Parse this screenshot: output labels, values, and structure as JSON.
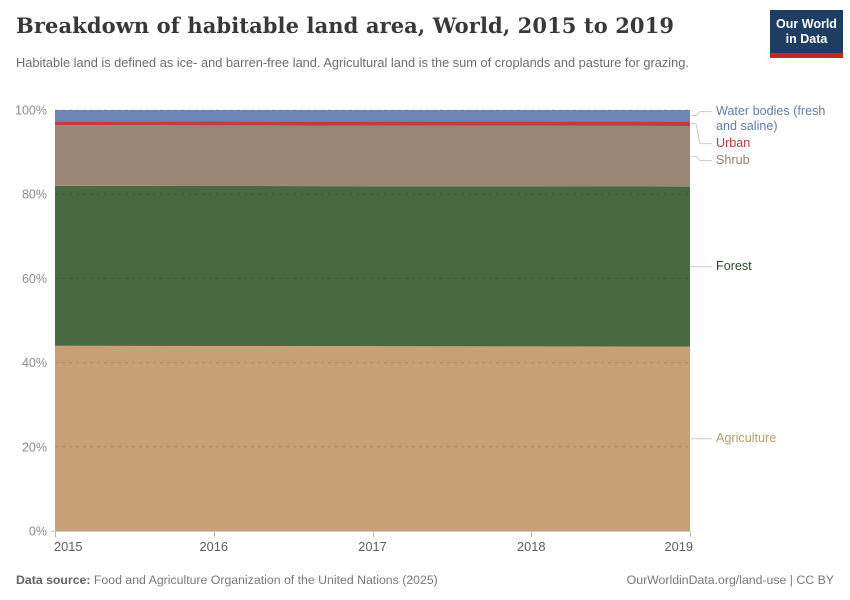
{
  "logo": {
    "line1": "Our World",
    "line2": "in Data",
    "bg_color": "#1d3d63",
    "accent_color": "#c5281c"
  },
  "footer": {
    "source_label": "Data source:",
    "source_text": " Food and Agriculture Organization of the United Nations (2025)",
    "right_text": "OurWorldinData.org/land-use | CC BY"
  },
  "chart_data": {
    "type": "area",
    "stacked": true,
    "title": "Breakdown of habitable land area, World, 2015 to 2019",
    "subtitle": "Habitable land is defined as ice- and barren-free land. Agricultural land is the sum of croplands and pasture for grazing.",
    "x": [
      2015,
      2016,
      2017,
      2018,
      2019
    ],
    "xlabel": "",
    "ylabel": "",
    "ylim": [
      0,
      100
    ],
    "yticks": [
      "0%",
      "20%",
      "40%",
      "60%",
      "80%",
      "100%"
    ],
    "ytick_values": [
      0,
      20,
      40,
      60,
      80,
      100
    ],
    "grid": "dashed",
    "legend_position": "right-labels",
    "units": "% of habitable land",
    "series": [
      {
        "name": "Agriculture",
        "color": "#c7a175",
        "label_color": "#bc9a66",
        "values": [
          44.0,
          43.95,
          43.9,
          43.85,
          43.8
        ]
      },
      {
        "name": "Forest",
        "color": "#476a40",
        "label_color": "#234d25",
        "values": [
          38.0,
          38.0,
          38.0,
          38.0,
          38.0
        ]
      },
      {
        "name": "Shrub",
        "color": "#9b8575",
        "label_color": "#988068",
        "values": [
          14.4,
          14.4,
          14.4,
          14.4,
          14.4
        ]
      },
      {
        "name": "Urban",
        "color": "#c03b42",
        "label_color": "#bb3a41",
        "values": [
          0.9,
          1.0,
          1.0,
          1.05,
          1.1
        ]
      },
      {
        "name": "Water bodies (fresh and saline)",
        "color": "#6e87b7",
        "label_color": "#5f7cb0",
        "values": [
          2.7,
          2.65,
          2.7,
          2.7,
          2.7
        ]
      }
    ]
  }
}
